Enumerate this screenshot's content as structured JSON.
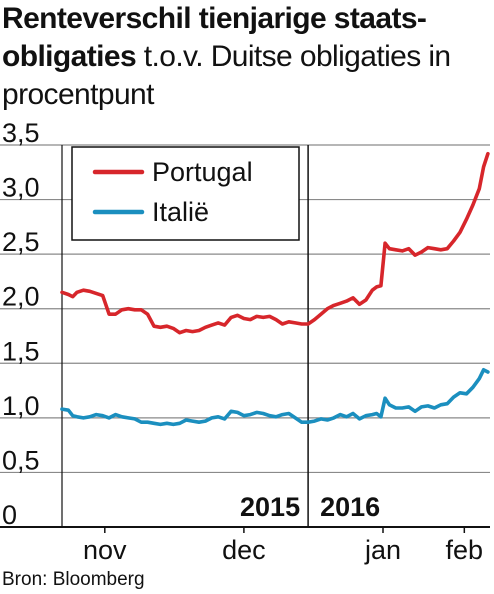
{
  "title": {
    "bold": "Renteverschil  tienjarige staats-obligaties",
    "light": " t.o.v. Duitse obligaties in procentpunt"
  },
  "source": "Bron: Bloomberg",
  "chart_data": {
    "type": "line",
    "title": "Renteverschil  tienjarige staats-obligaties t.o.v. Duitse obligaties in procentpunt",
    "ylim": [
      0,
      3.5
    ],
    "yticks": [
      "0",
      "0,5",
      "1,0",
      "1,5",
      "2,0",
      "2,5",
      "3,0",
      "3,5"
    ],
    "ytick_values": [
      0,
      0.5,
      1.0,
      1.5,
      2.0,
      2.5,
      3.0,
      3.5
    ],
    "xlim": [
      0,
      100
    ],
    "xtick_labels": [
      "nov",
      "dec",
      "jan",
      "feb"
    ],
    "xtick_positions": [
      10,
      42.5,
      75,
      94
    ],
    "year_labels": [
      "2015",
      "2016"
    ],
    "year_divider": 57.5,
    "grid": "horizontal",
    "legend": "top-left",
    "series": [
      {
        "name": "Portugal",
        "color": "#d7262b",
        "x": [
          0,
          1.5,
          2.5,
          3.5,
          5,
          6.5,
          8,
          9.5,
          11,
          12.5,
          14,
          15.5,
          17,
          18.5,
          20,
          21.5,
          23,
          24.5,
          26,
          27.5,
          29,
          30.5,
          32,
          33.5,
          35,
          36.5,
          38,
          39.5,
          41,
          42.5,
          44,
          45.5,
          47,
          48.5,
          50,
          51.5,
          53,
          54.5,
          56,
          57.5,
          59,
          60.5,
          62,
          63.5,
          65,
          66.5,
          68,
          69.5,
          71,
          72.5,
          73.5,
          74.5,
          75.5,
          76.5,
          78,
          79.5,
          81,
          82.5,
          84,
          85.5,
          87,
          88.5,
          90,
          91.5,
          93,
          94.5,
          96,
          97.5,
          98.5,
          99.5
        ],
        "y": [
          2.15,
          2.13,
          2.11,
          2.15,
          2.17,
          2.16,
          2.14,
          2.12,
          1.95,
          1.95,
          1.99,
          2.0,
          1.99,
          1.99,
          1.95,
          1.84,
          1.83,
          1.84,
          1.82,
          1.78,
          1.8,
          1.79,
          1.8,
          1.83,
          1.85,
          1.87,
          1.85,
          1.92,
          1.94,
          1.91,
          1.9,
          1.93,
          1.92,
          1.93,
          1.9,
          1.86,
          1.88,
          1.87,
          1.86,
          1.86,
          1.9,
          1.95,
          2.0,
          2.03,
          2.05,
          2.07,
          2.1,
          2.04,
          2.08,
          2.17,
          2.2,
          2.21,
          2.6,
          2.55,
          2.54,
          2.53,
          2.55,
          2.49,
          2.52,
          2.56,
          2.55,
          2.54,
          2.55,
          2.62,
          2.7,
          2.82,
          2.95,
          3.1,
          3.3,
          3.42
        ]
      },
      {
        "name": "Italië",
        "color": "#1b8fbf",
        "x": [
          0,
          1.5,
          2.5,
          3.5,
          5,
          6.5,
          8,
          9.5,
          11,
          12.5,
          14,
          15.5,
          17,
          18.5,
          20,
          21.5,
          23,
          24.5,
          26,
          27.5,
          29,
          30.5,
          32,
          33.5,
          35,
          36.5,
          38,
          39.5,
          41,
          42.5,
          44,
          45.5,
          47,
          48.5,
          50,
          51.5,
          53,
          54.5,
          56,
          57.5,
          59,
          60.5,
          62,
          63.5,
          65,
          66.5,
          68,
          69.5,
          71,
          72.5,
          73.5,
          74.5,
          75.5,
          76.5,
          78,
          79.5,
          81,
          82.5,
          84,
          85.5,
          87,
          88.5,
          90,
          91.5,
          93,
          94.5,
          96,
          97.5,
          98.5,
          99.5
        ],
        "y": [
          1.08,
          1.07,
          1.02,
          1.01,
          1.0,
          1.01,
          1.03,
          1.02,
          1.0,
          1.03,
          1.01,
          1.0,
          0.99,
          0.96,
          0.96,
          0.95,
          0.94,
          0.95,
          0.94,
          0.95,
          0.98,
          0.97,
          0.96,
          0.97,
          1.0,
          1.01,
          0.99,
          1.06,
          1.05,
          1.02,
          1.03,
          1.05,
          1.04,
          1.02,
          1.01,
          1.03,
          1.04,
          1.0,
          0.96,
          0.96,
          0.97,
          0.99,
          0.98,
          1.0,
          1.03,
          1.01,
          1.04,
          0.99,
          1.02,
          1.03,
          1.04,
          1.01,
          1.18,
          1.12,
          1.09,
          1.09,
          1.1,
          1.06,
          1.1,
          1.11,
          1.09,
          1.12,
          1.13,
          1.19,
          1.23,
          1.22,
          1.28,
          1.36,
          1.44,
          1.42
        ]
      }
    ]
  }
}
